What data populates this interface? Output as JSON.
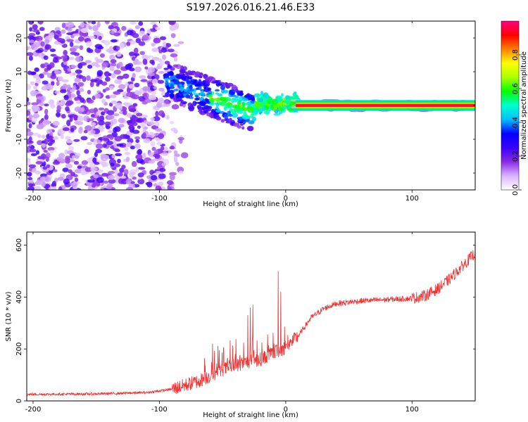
{
  "title": "S197.2026.016.21.46.E33",
  "chart_data": [
    {
      "type": "heatmap",
      "name": "spectrogram",
      "xlabel": "Height of straight line (km)",
      "ylabel": "Frequency (Hz)",
      "xlim": [
        -205,
        150
      ],
      "ylim": [
        -25,
        25
      ],
      "xticks": [
        -200,
        -100,
        0,
        100
      ],
      "yticks": [
        -20,
        -10,
        0,
        10,
        20
      ],
      "colorbar": {
        "label": "Normalized spectral amplitude",
        "range": [
          0.0,
          1.0
        ],
        "ticks": [
          0.0,
          0.2,
          0.4,
          0.6,
          0.8
        ],
        "colormap": [
          "#ffffff",
          "#d9b3ff",
          "#8a2be2",
          "#3a00ff",
          "#0000ff",
          "#00bfff",
          "#00ffd0",
          "#00ff00",
          "#aaff00",
          "#ffff00",
          "#ff8000",
          "#ff0000",
          "#ff0080"
        ]
      },
      "features": {
        "noise_region_km": [
          -205,
          -80
        ],
        "transition_region_km": [
          -90,
          10
        ],
        "tone_band_km": [
          8,
          150
        ],
        "tone_freq_hz": 0
      }
    },
    {
      "type": "line",
      "name": "snr",
      "xlabel": "Height of straight line (km)",
      "ylabel": "SNR (10 * v/v)",
      "xlim": [
        -205,
        150
      ],
      "ylim": [
        0,
        650
      ],
      "xticks": [
        -200,
        -100,
        0,
        100
      ],
      "yticks": [
        0,
        200,
        400,
        600
      ],
      "color": "#ee3333",
      "trend": {
        "x": [
          -205,
          -150,
          -110,
          -90,
          -80,
          -70,
          -60,
          -50,
          -40,
          -30,
          -20,
          -10,
          0,
          10,
          20,
          30,
          40,
          60,
          80,
          100,
          110,
          120,
          130,
          140,
          150
        ],
        "y": [
          25,
          27,
          32,
          45,
          60,
          75,
          95,
          120,
          135,
          150,
          160,
          185,
          205,
          250,
          320,
          355,
          375,
          385,
          390,
          395,
          405,
          430,
          470,
          520,
          570
        ]
      },
      "spikes": [
        {
          "x": -58,
          "y": 220
        },
        {
          "x": -30,
          "y": 330
        },
        {
          "x": -28,
          "y": 360
        },
        {
          "x": -26,
          "y": 370
        },
        {
          "x": -6,
          "y": 500
        },
        {
          "x": -4,
          "y": 420
        }
      ]
    }
  ]
}
